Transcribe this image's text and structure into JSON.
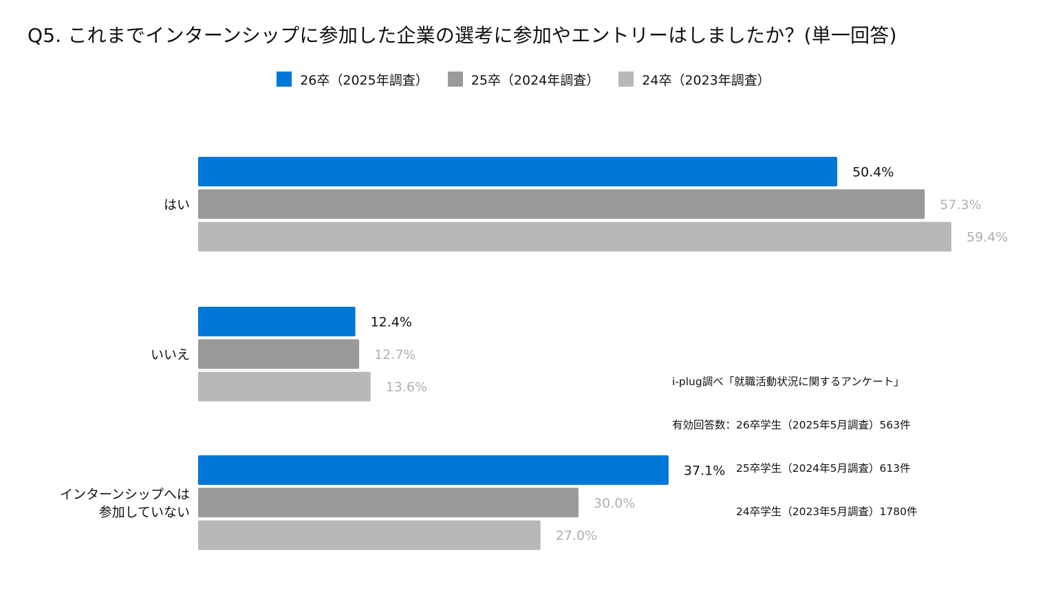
{
  "title": "Q5. これまでインターンシップに参加した企業の選考に参加やエントリーはしましたか？(単一回答)",
  "legend": [
    {
      "label": "26卒（2025年調査）",
      "color": "#0078d7"
    },
    {
      "label": "25卒（2024年調査）",
      "color": "#9a9a9a"
    },
    {
      "label": "24卒（2023年調査）",
      "color": "#b8b8b8"
    }
  ],
  "note": {
    "lines": [
      "i-plug調べ「就職活動状況に関するアンケート」",
      "有効回答数：26卒学生（2025年5月調査）563件",
      "　　　　　　25卒学生（2024年5月調査）613件",
      "　　　　　　24卒学生（2023年5月調査）1780件"
    ]
  },
  "chart_data": {
    "type": "bar",
    "orientation": "horizontal",
    "title": "Q5. これまでインターンシップに参加した企業の選考に参加やエントリーはしましたか？(単一回答)",
    "categories": [
      "はい",
      "いいえ",
      "インターンシップへは\n参加していない"
    ],
    "series": [
      {
        "name": "26卒（2025年調査）",
        "color": "#0078d7",
        "label_color": "#111111",
        "values": [
          50.4,
          12.4,
          37.1
        ],
        "labels": [
          "50.4%",
          "12.4%",
          "37.1%"
        ]
      },
      {
        "name": "25卒（2024年調査）",
        "color": "#9a9a9a",
        "label_color": "#b0b0b0",
        "values": [
          57.3,
          12.7,
          30.0
        ],
        "labels": [
          "57.3%",
          "12.7%",
          "30.0%"
        ]
      },
      {
        "name": "24卒（2023年調査）",
        "color": "#b8b8b8",
        "label_color": "#b0b0b0",
        "values": [
          59.4,
          13.6,
          27.0
        ],
        "labels": [
          "59.4%",
          "13.6%",
          "27.0%"
        ]
      }
    ],
    "xlim": [
      0,
      100
    ],
    "xlabel": "",
    "ylabel": "",
    "grid": false,
    "legend_position": "top-center"
  }
}
